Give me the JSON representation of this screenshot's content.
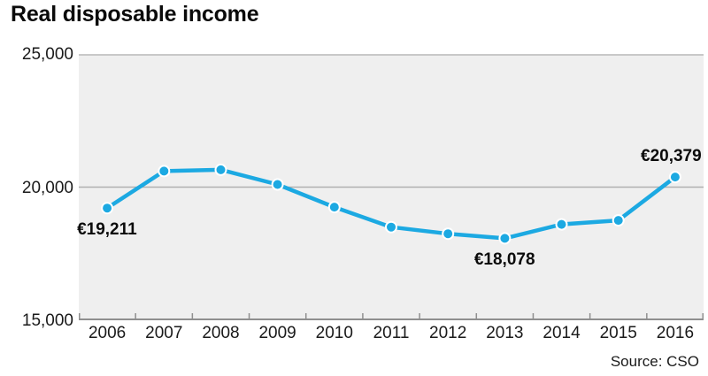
{
  "chart_data": {
    "type": "line",
    "title": "Real disposable income",
    "categories": [
      "2006",
      "2007",
      "2008",
      "2009",
      "2010",
      "2011",
      "2012",
      "2013",
      "2014",
      "2015",
      "2016"
    ],
    "values": [
      19211,
      20600,
      20650,
      20100,
      19250,
      18500,
      18250,
      18078,
      18600,
      18750,
      20379
    ],
    "xlabel": "",
    "ylabel": "",
    "ylim": [
      15000,
      25000
    ],
    "yticks": [
      {
        "value": 15000,
        "label": "15,000"
      },
      {
        "value": 20000,
        "label": "20,000"
      },
      {
        "value": 25000,
        "label": "25,000"
      }
    ],
    "grid": true,
    "legend_position": "none",
    "annotations": [
      {
        "index": 0,
        "text": "€19,211",
        "placement": "below"
      },
      {
        "index": 7,
        "text": "€18,078",
        "placement": "below"
      },
      {
        "index": 10,
        "text": "€20,379",
        "placement": "above"
      }
    ],
    "colors": {
      "line": "#1ca9e2",
      "point_ring": "#ffffff",
      "plot_background": "#efefef",
      "gridline": "#b0b0b0",
      "top_border": "#c8c8c8",
      "axis": "#8f8f8f",
      "text": "#1a1a1a"
    }
  },
  "source": {
    "label": "Source: CSO"
  }
}
